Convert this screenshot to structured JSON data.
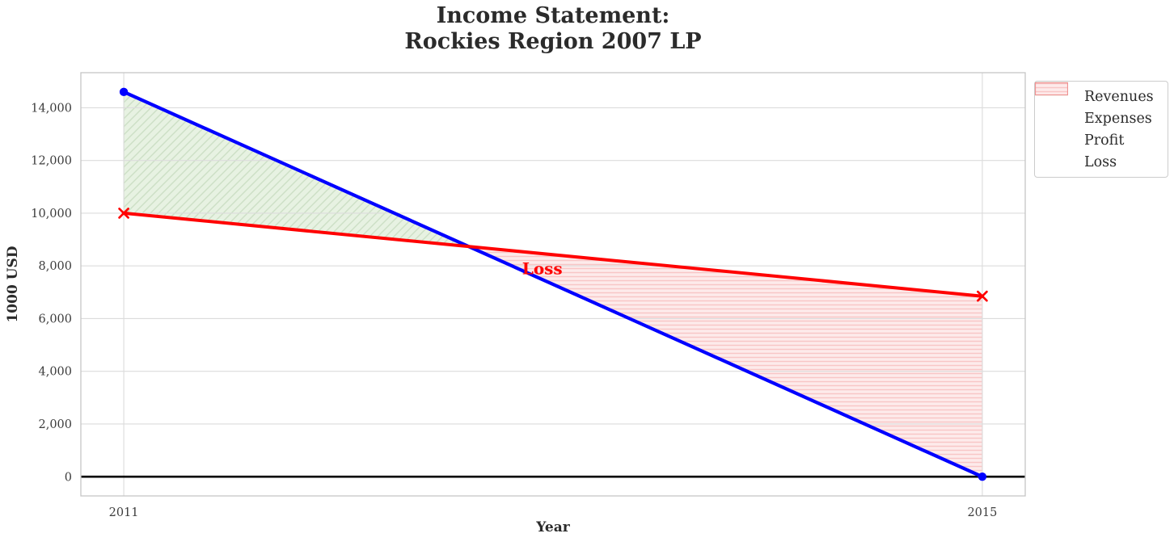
{
  "chart_data": {
    "type": "line",
    "title": "Income Statement:\nRockies Region 2007 LP",
    "xlabel": "Year",
    "ylabel": "1000 USD",
    "x": [
      2011,
      2015
    ],
    "series": [
      {
        "name": "Revenues",
        "values": [
          14600,
          0
        ],
        "color": "#0000ff",
        "marker": "circle",
        "linewidth": 4.2
      },
      {
        "name": "Expenses",
        "values": [
          10000,
          6850
        ],
        "color": "#ff0000",
        "marker": "x",
        "linewidth": 4.0
      }
    ],
    "fills": [
      {
        "name": "Profit",
        "region": "revenues_above_expenses",
        "hatch": "diagonal",
        "face": "#e7f2e2",
        "hatch_color": "#ccdfc5",
        "edge": "#8fc78f"
      },
      {
        "name": "Loss",
        "region": "expenses_above_revenues",
        "hatch": "horizontal",
        "face": "#fdebeb",
        "hatch_color": "#f8c6c6",
        "edge": "#ef9292"
      }
    ],
    "annotations": [
      {
        "label": "Loss",
        "x": 2012.95,
        "y": 7900,
        "color": "#ff0000",
        "fontsize": 20
      }
    ],
    "zero_line": {
      "y": 0,
      "color": "#000000",
      "linewidth": 2.6
    },
    "xlim": [
      2010.8,
      2015.2
    ],
    "ylim": [
      -730,
      15330
    ],
    "xticks": [
      2011,
      2015
    ],
    "xtick_labels": [
      "2011",
      "2015"
    ],
    "yticks": [
      0,
      2000,
      4000,
      6000,
      8000,
      10000,
      12000,
      14000
    ],
    "ytick_labels": [
      "0",
      "2,000",
      "4,000",
      "6,000",
      "8,000",
      "10,000",
      "12,000",
      "14,000"
    ],
    "grid": true,
    "legend": {
      "position": "upper-right-outside",
      "items": [
        {
          "label": "Revenues"
        },
        {
          "label": "Expenses"
        },
        {
          "label": "Profit"
        },
        {
          "label": "Loss"
        }
      ]
    }
  },
  "style_colors": {
    "grid": "#dcdcdc",
    "spine": "#c5c5c5",
    "tick_text": "#3c3c3c",
    "title_text": "#2b2b2b"
  }
}
